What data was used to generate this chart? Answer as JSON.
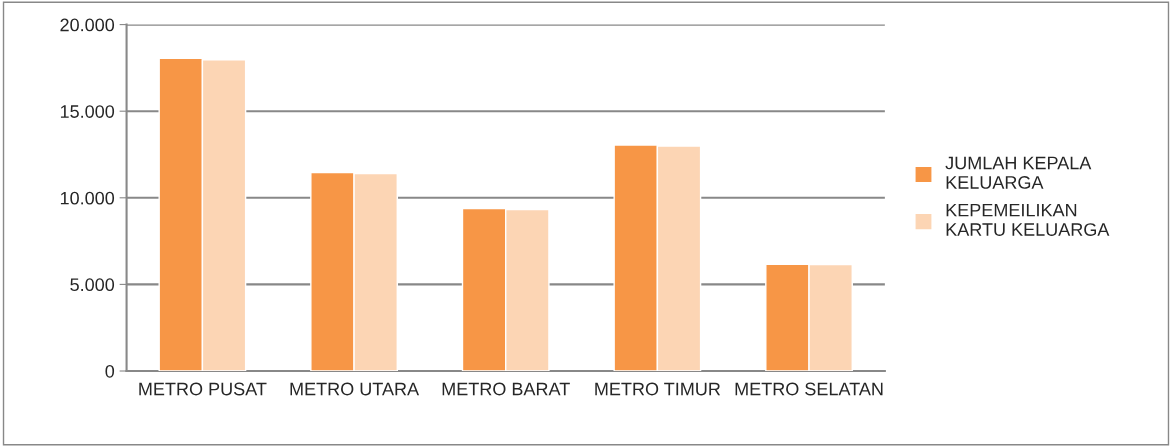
{
  "chart_data": {
    "type": "bar",
    "categories": [
      "METRO PUSAT",
      "METRO UTARA",
      "METRO BARAT",
      "METRO TIMUR",
      "METRO SELATAN"
    ],
    "series": [
      {
        "name": "JUMLAH KEPALA KELUARGA",
        "color": "#f79646",
        "values": [
          18060,
          11460,
          9380,
          13050,
          6160
        ]
      },
      {
        "name": "KEPEMEILIKAN KARTU KELUARGA",
        "color": "#fcd5b4",
        "values": [
          17960,
          11400,
          9320,
          12990,
          6150
        ]
      }
    ],
    "ylim": [
      0,
      20000
    ],
    "yticks": [
      0,
      {
        "value": 5000,
        "label": "5.000"
      },
      {
        "value": 10000,
        "label": "10.000"
      },
      {
        "value": 15000,
        "label": "15.000"
      },
      {
        "value": 20000,
        "label": "20.000"
      }
    ],
    "grid": "y",
    "legend": "right"
  }
}
